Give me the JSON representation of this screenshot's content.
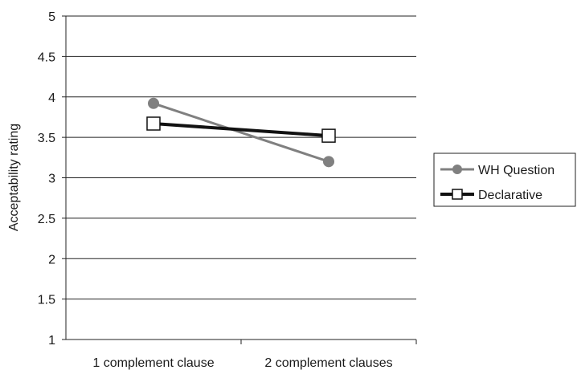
{
  "chart_data": {
    "type": "line",
    "categories": [
      "1 complement clause",
      "2 complement clauses"
    ],
    "ylabel": "Acceptability rating",
    "xlabel": "",
    "ylim": [
      1,
      5
    ],
    "yticks": [
      "1",
      "1.5",
      "2",
      "2.5",
      "3",
      "3.5",
      "4",
      "4.5",
      "5"
    ],
    "grid": "horizontal",
    "legend": "right",
    "series": [
      {
        "name": "WH Question",
        "values": [
          3.92,
          3.2
        ],
        "color": "#808080",
        "marker": "circle"
      },
      {
        "name": "Declarative",
        "values": [
          3.67,
          3.52
        ],
        "color": "#111111",
        "marker": "square"
      }
    ]
  }
}
